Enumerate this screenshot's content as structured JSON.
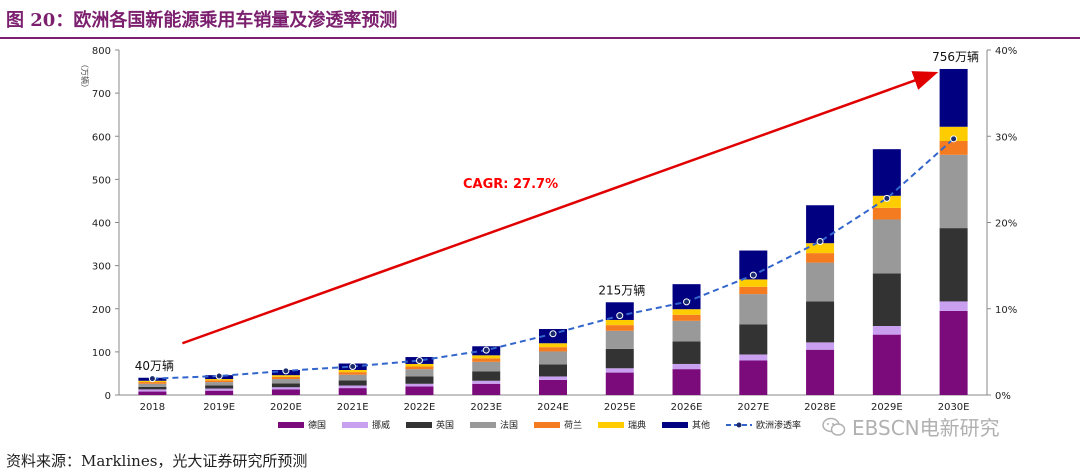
{
  "figure": {
    "title": "图 20：欧洲各国新能源乘用车销量及渗透率预测",
    "source": "资料来源：Marklines，光大证券研究所预测",
    "watermark": "EBSCN电新研究",
    "watermark_icon": "wechat-icon"
  },
  "chart_data": {
    "type": "bar",
    "stacked": true,
    "categories": [
      "2018",
      "2019E",
      "2020E",
      "2021E",
      "2022E",
      "2023E",
      "2024E",
      "2025E",
      "2026E",
      "2027E",
      "2028E",
      "2029E",
      "2030E"
    ],
    "ylabel": "（万辆）",
    "ylim": [
      0,
      800
    ],
    "yticks": [
      0,
      100,
      200,
      300,
      400,
      500,
      600,
      700,
      800
    ],
    "y2lim": [
      0,
      0.4
    ],
    "y2ticks": [
      "0%",
      "10%",
      "20%",
      "30%",
      "40%"
    ],
    "series": [
      {
        "name": "德国",
        "color": "#7b0a7b",
        "values": [
          8,
          10,
          13,
          16,
          20,
          26,
          35,
          52,
          60,
          80,
          105,
          140,
          195
        ]
      },
      {
        "name": "挪威",
        "color": "#c9a0f0",
        "values": [
          5,
          5,
          5,
          6,
          6,
          7,
          8,
          10,
          12,
          14,
          17,
          20,
          22
        ]
      },
      {
        "name": "英国",
        "color": "#333333",
        "values": [
          6,
          7,
          9,
          12,
          17,
          22,
          28,
          45,
          52,
          70,
          95,
          122,
          170
        ]
      },
      {
        "name": "法国",
        "color": "#999999",
        "values": [
          7,
          8,
          10,
          13,
          17,
          22,
          30,
          42,
          48,
          70,
          90,
          125,
          170
        ]
      },
      {
        "name": "荷兰",
        "color": "#f47b20",
        "values": [
          4,
          4,
          5,
          6,
          6,
          8,
          10,
          13,
          14,
          17,
          22,
          27,
          32
        ]
      },
      {
        "name": "瑞典",
        "color": "#ffcc00",
        "values": [
          3,
          3,
          4,
          5,
          6,
          7,
          9,
          12,
          13,
          17,
          23,
          28,
          33
        ]
      },
      {
        "name": "其他",
        "color": "#000080",
        "values": [
          7,
          9,
          12,
          15,
          16,
          21,
          33,
          41,
          58,
          67,
          88,
          108,
          134
        ]
      }
    ],
    "line": {
      "name": "欧洲渗透率",
      "axis": "right",
      "color": "#3366cc",
      "values": [
        0.019,
        0.022,
        0.028,
        0.033,
        0.04,
        0.052,
        0.071,
        0.092,
        0.108,
        0.139,
        0.178,
        0.228,
        0.297
      ]
    },
    "annotations": [
      {
        "category": "2018",
        "text": "40万辆"
      },
      {
        "category": "2025E",
        "text": "215万辆"
      },
      {
        "category": "2030E",
        "text": "756万辆"
      },
      {
        "text": "CAGR: 27.7%",
        "color": "#ff0000"
      }
    ],
    "legend_position": "bottom"
  }
}
